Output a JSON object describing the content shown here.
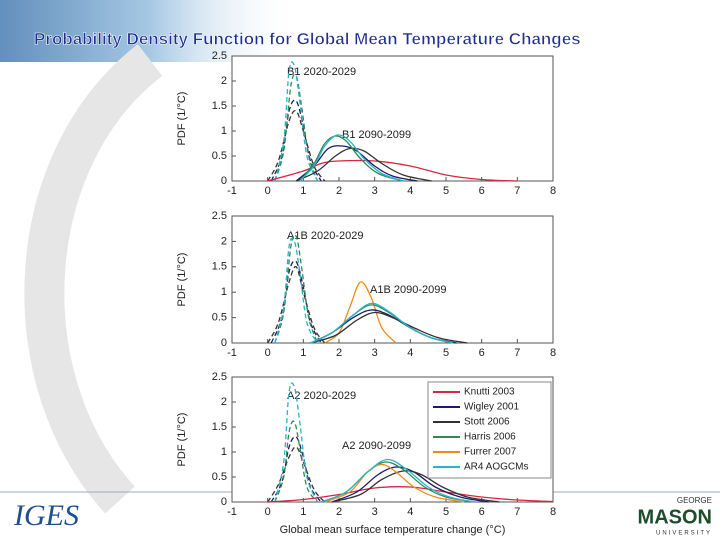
{
  "title": "Probability Density Function for Global Mean Temperature Changes",
  "logos": {
    "left": "IGES",
    "right_top": "GEORGE",
    "right_main": "MASON",
    "right_bottom": "UNIVERSITY"
  },
  "chart_data": [
    {
      "type": "line",
      "ylabel": "PDF (1/°C)",
      "annotations": [
        "B1 2020-2029",
        "B1 2090-2099"
      ],
      "xlim": [
        -1,
        8
      ],
      "xticks": [
        -1,
        0,
        1,
        2,
        3,
        4,
        5,
        6,
        7,
        8
      ],
      "ylim": [
        0,
        2.5
      ],
      "yticks": [
        0,
        0.5,
        1,
        1.5,
        2,
        2.5
      ],
      "series": [
        {
          "name": "Wigley 2001",
          "color": "#1a1a6e",
          "dash": true,
          "x": [
            0.1,
            0.4,
            0.6,
            0.8,
            1.0,
            1.2,
            1.5
          ],
          "values": [
            0,
            0.5,
            1.4,
            1.6,
            1.1,
            0.4,
            0
          ]
        },
        {
          "name": "Stott 2006",
          "color": "#333333",
          "dash": true,
          "x": [
            0,
            0.3,
            0.6,
            0.8,
            1.0,
            1.3,
            1.6
          ],
          "values": [
            0,
            0.4,
            1.2,
            1.4,
            1.0,
            0.3,
            0
          ]
        },
        {
          "name": "Harris 2006",
          "color": "#2e8b57",
          "dash": true,
          "x": [
            0.2,
            0.45,
            0.65,
            0.8,
            0.95,
            1.15,
            1.4
          ],
          "values": [
            0,
            0.6,
            1.9,
            2.1,
            1.5,
            0.5,
            0
          ]
        },
        {
          "name": "AR4 AOGCMs",
          "color": "#27b5c8",
          "dash": true,
          "x": [
            0.2,
            0.45,
            0.6,
            0.75,
            0.9,
            1.1,
            1.4
          ],
          "values": [
            0,
            0.8,
            2.2,
            2.3,
            1.6,
            0.5,
            0
          ]
        },
        {
          "name": "Knutti 2003",
          "color": "#d9263f",
          "dash": false,
          "x": [
            0,
            1,
            1.5,
            2,
            3,
            4,
            5,
            6,
            7
          ],
          "values": [
            0,
            0.2,
            0.35,
            0.4,
            0.4,
            0.3,
            0.12,
            0.03,
            0
          ]
        },
        {
          "name": "Wigley 2001",
          "color": "#1a1a6e",
          "dash": false,
          "x": [
            0.8,
            1.3,
            1.7,
            2.1,
            2.5,
            3,
            3.5,
            4.2
          ],
          "values": [
            0,
            0.3,
            0.65,
            0.7,
            0.6,
            0.3,
            0.1,
            0
          ]
        },
        {
          "name": "Stott 2006",
          "color": "#333333",
          "dash": false,
          "x": [
            0.8,
            1.4,
            1.9,
            2.3,
            2.7,
            3.2,
            3.8,
            4.6
          ],
          "values": [
            0,
            0.2,
            0.5,
            0.65,
            0.6,
            0.35,
            0.12,
            0
          ]
        },
        {
          "name": "Harris 2006",
          "color": "#2e8b57",
          "dash": false,
          "x": [
            0.9,
            1.3,
            1.6,
            1.9,
            2.2,
            2.6,
            3.1,
            3.8
          ],
          "values": [
            0,
            0.35,
            0.75,
            0.9,
            0.8,
            0.45,
            0.15,
            0
          ]
        },
        {
          "name": "AR4 AOGCMs",
          "color": "#27b5c8",
          "dash": false,
          "x": [
            0.9,
            1.3,
            1.6,
            1.95,
            2.3,
            2.7,
            3.2,
            3.8
          ],
          "values": [
            0,
            0.3,
            0.7,
            0.92,
            0.8,
            0.45,
            0.15,
            0
          ]
        }
      ]
    },
    {
      "type": "line",
      "ylabel": "PDF (1/°C)",
      "annotations": [
        "A1B 2020-2029",
        "A1B 2090-2099"
      ],
      "xlim": [
        -1,
        8
      ],
      "xticks": [
        -1,
        0,
        1,
        2,
        3,
        4,
        5,
        6,
        7,
        8
      ],
      "ylim": [
        0,
        2.5
      ],
      "yticks": [
        0,
        0.5,
        1,
        1.5,
        2,
        2.5
      ],
      "series": [
        {
          "name": "Wigley 2001",
          "color": "#1a1a6e",
          "dash": true,
          "x": [
            0.1,
            0.4,
            0.6,
            0.8,
            1.0,
            1.2,
            1.5
          ],
          "values": [
            0,
            0.5,
            1.4,
            1.6,
            1.1,
            0.4,
            0
          ]
        },
        {
          "name": "Stott 2006",
          "color": "#333333",
          "dash": true,
          "x": [
            0,
            0.3,
            0.6,
            0.8,
            1.0,
            1.3,
            1.6
          ],
          "values": [
            0,
            0.4,
            1.2,
            1.5,
            1.0,
            0.3,
            0
          ]
        },
        {
          "name": "Harris 2006",
          "color": "#2e8b57",
          "dash": true,
          "x": [
            0.2,
            0.45,
            0.65,
            0.8,
            0.95,
            1.15,
            1.4
          ],
          "values": [
            0,
            0.6,
            1.9,
            2.1,
            1.5,
            0.5,
            0
          ]
        },
        {
          "name": "AR4 AOGCMs",
          "color": "#27b5c8",
          "dash": true,
          "x": [
            0.2,
            0.45,
            0.6,
            0.75,
            0.9,
            1.1,
            1.4
          ],
          "values": [
            0,
            0.7,
            1.9,
            2.0,
            1.4,
            0.4,
            0
          ]
        },
        {
          "name": "Furrer 2007",
          "color": "#f08a1c",
          "dash": false,
          "x": [
            1.6,
            2.0,
            2.3,
            2.6,
            2.9,
            3.2,
            3.6
          ],
          "values": [
            0,
            0.2,
            0.7,
            1.2,
            0.9,
            0.3,
            0
          ]
        },
        {
          "name": "Wigley 2001",
          "color": "#1a1a6e",
          "dash": false,
          "x": [
            1.2,
            1.8,
            2.4,
            2.9,
            3.4,
            4,
            4.6,
            5.3
          ],
          "values": [
            0,
            0.2,
            0.5,
            0.65,
            0.55,
            0.3,
            0.1,
            0
          ]
        },
        {
          "name": "Stott 2006",
          "color": "#333333",
          "dash": false,
          "x": [
            1.2,
            1.9,
            2.5,
            3.0,
            3.5,
            4.1,
            4.8,
            5.6
          ],
          "values": [
            0,
            0.15,
            0.45,
            0.6,
            0.5,
            0.3,
            0.1,
            0
          ]
        },
        {
          "name": "Harris 2006",
          "color": "#2e8b57",
          "dash": false,
          "x": [
            1.2,
            1.8,
            2.4,
            2.9,
            3.4,
            4,
            4.6,
            5.2
          ],
          "values": [
            0,
            0.2,
            0.55,
            0.75,
            0.6,
            0.3,
            0.1,
            0
          ]
        },
        {
          "name": "AR4 AOGCMs",
          "color": "#27b5c8",
          "dash": false,
          "x": [
            1.2,
            1.8,
            2.4,
            2.9,
            3.4,
            4,
            4.6,
            5.2
          ],
          "values": [
            0,
            0.2,
            0.55,
            0.78,
            0.62,
            0.3,
            0.1,
            0
          ]
        }
      ]
    },
    {
      "type": "line",
      "ylabel": "PDF (1/°C)",
      "xlabel": "Global mean surface temperature change (°C)",
      "annotations": [
        "A2 2020-2029",
        "A2 2090-2099"
      ],
      "legend": "upper right",
      "xlim": [
        -1,
        8
      ],
      "xticks": [
        -1,
        0,
        1,
        2,
        3,
        4,
        5,
        6,
        7,
        8
      ],
      "ylim": [
        0,
        2.5
      ],
      "yticks": [
        0,
        0.5,
        1,
        1.5,
        2,
        2.5
      ],
      "series": [
        {
          "name": "Wigley 2001",
          "color": "#1a1a6e",
          "dash": true,
          "x": [
            0.1,
            0.4,
            0.6,
            0.8,
            1.0,
            1.2,
            1.5
          ],
          "values": [
            0,
            0.4,
            1.1,
            1.3,
            0.9,
            0.3,
            0
          ]
        },
        {
          "name": "Stott 2006",
          "color": "#333333",
          "dash": true,
          "x": [
            0,
            0.3,
            0.6,
            0.8,
            1.0,
            1.3,
            1.6
          ],
          "values": [
            0,
            0.35,
            0.9,
            1.1,
            0.8,
            0.25,
            0
          ]
        },
        {
          "name": "Harris 2006",
          "color": "#2e8b57",
          "dash": true,
          "x": [
            0.2,
            0.45,
            0.6,
            0.75,
            0.9,
            1.1,
            1.4
          ],
          "values": [
            0,
            0.5,
            1.4,
            1.6,
            1.1,
            0.3,
            0
          ]
        },
        {
          "name": "AR4 AOGCMs",
          "color": "#27b5c8",
          "dash": true,
          "x": [
            0.2,
            0.45,
            0.6,
            0.75,
            0.9,
            1.1,
            1.4
          ],
          "values": [
            0,
            0.8,
            2.2,
            2.3,
            1.6,
            0.5,
            0
          ]
        },
        {
          "name": "Knutti 2003",
          "color": "#d9263f",
          "dash": false,
          "x": [
            0,
            1,
            2,
            3,
            4,
            5,
            6,
            7,
            8
          ],
          "values": [
            0,
            0.05,
            0.15,
            0.28,
            0.3,
            0.2,
            0.1,
            0.04,
            0.01
          ]
        },
        {
          "name": "Wigley 2001",
          "color": "#1a1a6e",
          "dash": false,
          "x": [
            1.8,
            2.5,
            3.1,
            3.6,
            4.1,
            4.7,
            5.4,
            6.2
          ],
          "values": [
            0,
            0.2,
            0.55,
            0.7,
            0.6,
            0.3,
            0.1,
            0
          ]
        },
        {
          "name": "Stott 2006",
          "color": "#333333",
          "dash": false,
          "x": [
            1.8,
            2.6,
            3.2,
            3.8,
            4.3,
            4.9,
            5.6,
            6.5
          ],
          "values": [
            0,
            0.15,
            0.45,
            0.62,
            0.55,
            0.3,
            0.1,
            0
          ]
        },
        {
          "name": "Harris 2006",
          "color": "#2e8b57",
          "dash": false,
          "x": [
            1.5,
            2.2,
            2.8,
            3.3,
            3.8,
            4.4,
            5,
            5.8
          ],
          "values": [
            0,
            0.2,
            0.6,
            0.8,
            0.65,
            0.3,
            0.1,
            0
          ]
        },
        {
          "name": "Furrer 2007",
          "color": "#f08a1c",
          "dash": false,
          "x": [
            1.6,
            2.3,
            2.8,
            3.2,
            3.6,
            4.1,
            4.7,
            5.5
          ],
          "values": [
            0,
            0.2,
            0.6,
            0.75,
            0.6,
            0.3,
            0.1,
            0
          ]
        },
        {
          "name": "AR4 AOGCMs",
          "color": "#27b5c8",
          "dash": false,
          "x": [
            1.5,
            2.2,
            2.8,
            3.35,
            3.9,
            4.5,
            5.1,
            5.8
          ],
          "values": [
            0,
            0.2,
            0.6,
            0.85,
            0.65,
            0.3,
            0.1,
            0
          ]
        }
      ]
    }
  ]
}
